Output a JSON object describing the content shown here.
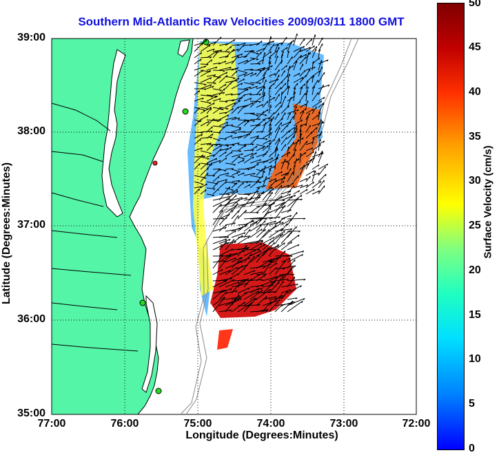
{
  "title": "Southern Mid-Atlantic Raw Velocities 2009/03/11 1800 GMT",
  "xlabel": "Longitude (Degrees:Minutes)",
  "ylabel": "Latitude (Degrees:Minutes)",
  "colorbar_label": "Surface Velocity (cm/s)",
  "lat_ticks": [
    "39:00",
    "38:00",
    "37:00",
    "36:00",
    "35:00"
  ],
  "lon_ticks": [
    "77:00",
    "76:00",
    "75:00",
    "74:00",
    "73:00",
    "72:00"
  ],
  "colorbar_ticks": [
    "50",
    "45",
    "40",
    "35",
    "30",
    "25",
    "20",
    "15",
    "10",
    "5",
    "0"
  ],
  "colors": {
    "land": "#55f5a8",
    "coast": "#000000",
    "grid": "#000000",
    "title": "#1010e0",
    "station_green": "#22dd22",
    "station_red": "#ff2020"
  },
  "map_extent": {
    "lon": [
      -77,
      -72
    ],
    "lat": [
      35,
      39
    ]
  },
  "colorbar_range": [
    0,
    50
  ]
}
